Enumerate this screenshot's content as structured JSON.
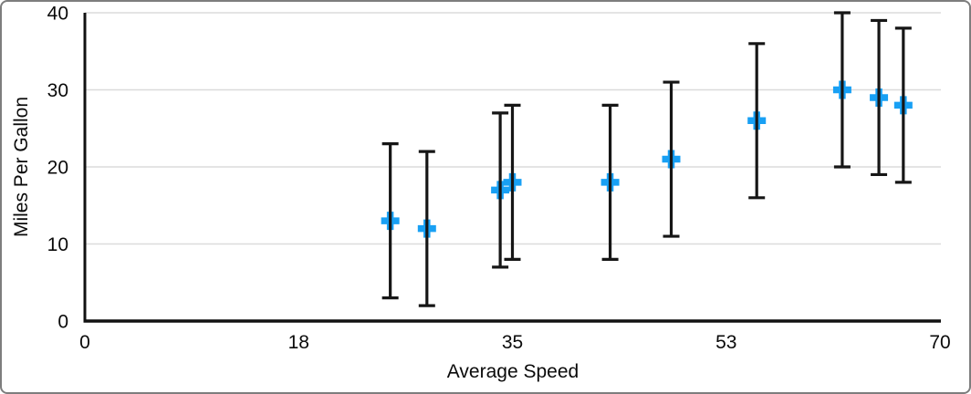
{
  "chart_data": {
    "type": "scatter",
    "title": "",
    "xlabel": "Average Speed",
    "ylabel": "Miles Per Gallon",
    "xlim": [
      0,
      70
    ],
    "ylim": [
      0,
      40
    ],
    "x_ticks": [
      {
        "value": 0,
        "label": "0"
      },
      {
        "value": 17.5,
        "label": "18"
      },
      {
        "value": 35,
        "label": "35"
      },
      {
        "value": 52.5,
        "label": "53"
      },
      {
        "value": 70,
        "label": "70"
      }
    ],
    "y_ticks": [
      {
        "value": 0,
        "label": "0"
      },
      {
        "value": 10,
        "label": "10"
      },
      {
        "value": 20,
        "label": "20"
      },
      {
        "value": 30,
        "label": "30"
      },
      {
        "value": 40,
        "label": "40"
      }
    ],
    "grid": "horizontal gridlines at nonzero y ticks",
    "legend": "none",
    "error_bars": {
      "axis": "y",
      "plus": 10,
      "minus": 10,
      "caps": true
    },
    "series": [
      {
        "name": "Miles Per Gallon",
        "marker": "plus",
        "points": [
          {
            "x": 25,
            "y": 13,
            "err_plus": 10,
            "err_minus": 10
          },
          {
            "x": 28,
            "y": 12,
            "err_plus": 10,
            "err_minus": 10
          },
          {
            "x": 34,
            "y": 17,
            "err_plus": 10,
            "err_minus": 10
          },
          {
            "x": 35,
            "y": 18,
            "err_plus": 10,
            "err_minus": 10
          },
          {
            "x": 43,
            "y": 18,
            "err_plus": 10,
            "err_minus": 10
          },
          {
            "x": 48,
            "y": 21,
            "err_plus": 10,
            "err_minus": 10
          },
          {
            "x": 55,
            "y": 26,
            "err_plus": 10,
            "err_minus": 10
          },
          {
            "x": 62,
            "y": 30,
            "err_plus": 10,
            "err_minus": 10
          },
          {
            "x": 65,
            "y": 29,
            "err_plus": 10,
            "err_minus": 10
          },
          {
            "x": 67,
            "y": 28,
            "err_plus": 10,
            "err_minus": 10
          }
        ]
      }
    ],
    "colors": {
      "marker": "#18A0F4",
      "error_bar": "#161616",
      "axis": "#111111",
      "gridline": "#DBDBDB",
      "text": "#0A0A0A"
    }
  }
}
